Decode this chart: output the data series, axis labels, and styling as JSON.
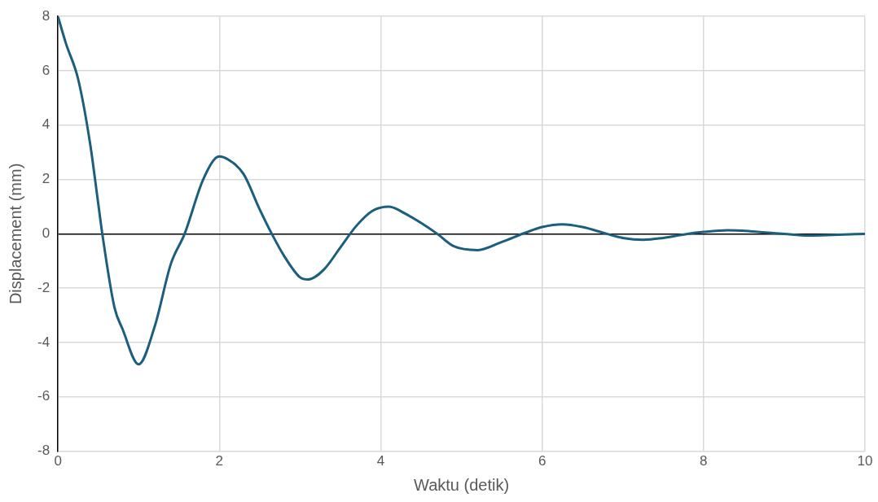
{
  "chart_data": {
    "type": "line",
    "xlabel": "Waktu (detik)",
    "ylabel": "Displacement (mm)",
    "x": [
      0,
      0.1,
      0.25,
      0.4,
      0.5,
      0.55,
      0.7,
      0.8,
      1.0,
      1.2,
      1.4,
      1.57,
      1.8,
      2.0,
      2.1,
      2.3,
      2.5,
      2.65,
      2.8,
      3.0,
      3.1,
      3.3,
      3.5,
      3.7,
      3.9,
      4.1,
      4.3,
      4.5,
      4.7,
      4.9,
      5.2,
      5.5,
      5.8,
      6.0,
      6.25,
      6.5,
      6.8,
      7.0,
      7.25,
      7.5,
      7.8,
      8.0,
      8.3,
      8.6,
      9.0,
      9.3,
      9.6,
      10
    ],
    "series": [
      {
        "color": "#1b5e7e",
        "values": [
          8,
          7.0,
          5.7,
          3.3,
          1.1,
          0,
          -2.7,
          -3.5,
          -4.8,
          -3.4,
          -1.1,
          0,
          2.0,
          2.85,
          2.75,
          2.2,
          0.9,
          0,
          -0.8,
          -1.6,
          -1.68,
          -1.3,
          -0.5,
          0.3,
          0.85,
          1.0,
          0.75,
          0.4,
          0,
          -0.45,
          -0.6,
          -0.3,
          0.05,
          0.25,
          0.35,
          0.25,
          0,
          -0.15,
          -0.22,
          -0.15,
          0,
          0.07,
          0.13,
          0.09,
          0,
          -0.06,
          -0.04,
          0
        ]
      }
    ],
    "xlim": [
      0,
      10
    ],
    "xticks": [
      0,
      2,
      4,
      6,
      8,
      10
    ],
    "ylim": [
      -8,
      8
    ],
    "yticks": [
      -8,
      -6,
      -4,
      -2,
      0,
      2,
      4,
      6,
      8
    ],
    "grid": true,
    "legend": false,
    "marker": "none",
    "line_style": "solid"
  }
}
